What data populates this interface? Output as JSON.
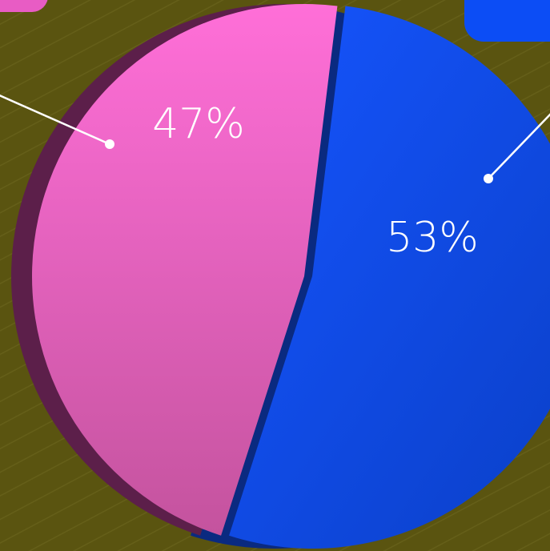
{
  "chart_data": {
    "type": "pie",
    "title": "",
    "slices": [
      {
        "name": "",
        "value": 53,
        "label": "53%",
        "color": "#0c4df5"
      },
      {
        "name": "",
        "value": 47,
        "label": "47%",
        "color": "#e85cc4"
      }
    ],
    "legend_placement": "top",
    "background_color": "#5a5410"
  }
}
